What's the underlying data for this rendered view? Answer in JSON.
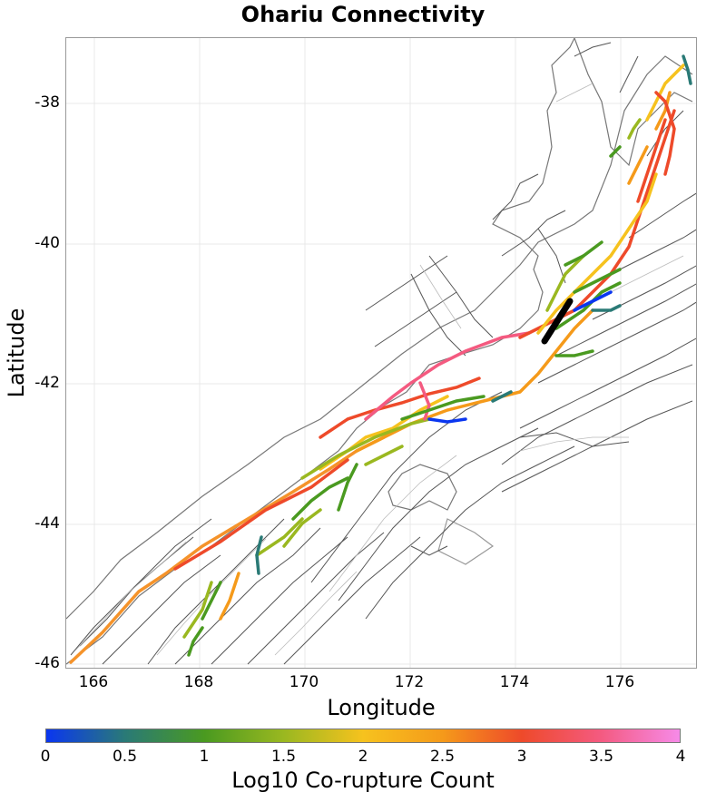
{
  "title": "Ohariu Connectivity",
  "xlabel": "Longitude",
  "ylabel": "Latitude",
  "x_ticks": [
    "166",
    "168",
    "170",
    "172",
    "174",
    "176"
  ],
  "y_ticks": [
    "-38",
    "-40",
    "-42",
    "-44",
    "-46"
  ],
  "colorbar": {
    "label": "Log10 Co-rupture Count",
    "ticks": [
      "0",
      "0.5",
      "1",
      "1.5",
      "2",
      "2.5",
      "3",
      "3.5",
      "4"
    ],
    "colors": [
      "#0a36f0",
      "#2a7a76",
      "#4a9a20",
      "#9ab820",
      "#f6c21e",
      "#f59a1a",
      "#ee4a2a",
      "#f45a80",
      "#f68ae8"
    ]
  },
  "map": {
    "xlim": [
      165.5,
      177.5
    ],
    "ylim": [
      -46,
      -37
    ],
    "highlight_color": "#000000",
    "coast_color": "#777777",
    "fault_color": "#555555"
  }
}
